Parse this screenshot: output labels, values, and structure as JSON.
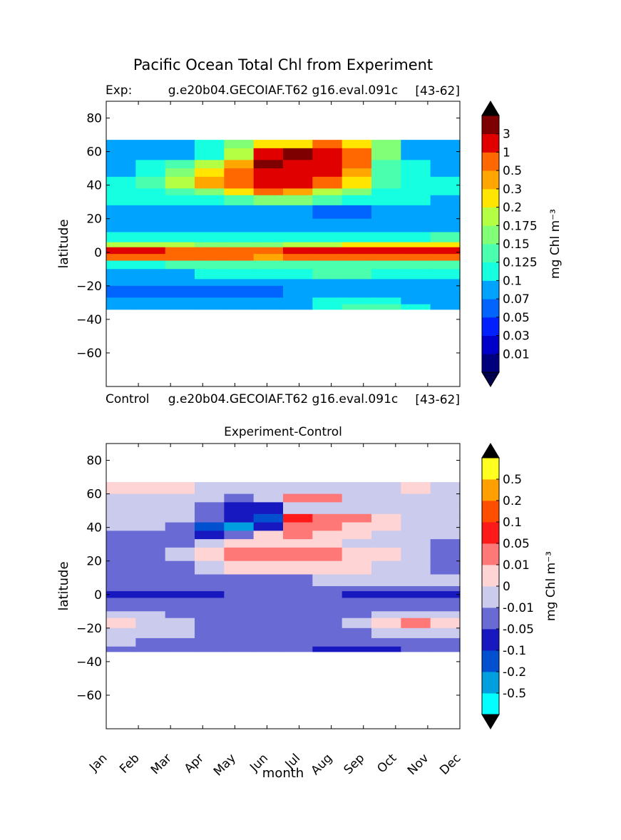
{
  "figure": {
    "title": "Pacific Ocean Total Chl from Experiment"
  },
  "chart_data": [
    {
      "type": "heatmap",
      "title_left": "Exp:",
      "title_center": "g.e20b04.GECOIAF.T62 g16.eval.091c",
      "title_right": "[43-62]",
      "bottom_left": "Control",
      "bottom_center": "g.e20b04.GECOIAF.T62 g16.eval.091c",
      "bottom_right": "[43-62]",
      "ylabel": "latitude",
      "ylim": [
        -80,
        90
      ],
      "yticks": [
        "80",
        "60",
        "40",
        "20",
        "0",
        "−20",
        "−40",
        "−60"
      ],
      "ytick_values": [
        80,
        60,
        40,
        20,
        0,
        -20,
        -40,
        -60
      ],
      "data_lat_range": [
        -34,
        67
      ],
      "colorbar": {
        "label": "mg Chl m⁻³",
        "tick_labels": [
          "0.01",
          "0.03",
          "0.05",
          "0.07",
          "0.1",
          "0.125",
          "0.15",
          "0.175",
          "0.2",
          "0.3",
          "0.5",
          "1",
          "3"
        ],
        "colors": [
          "#00007f",
          "#0000c8",
          "#0020ff",
          "#0064ff",
          "#00a4ff",
          "#16ffe1",
          "#4affad",
          "#80ff77",
          "#b4ff43",
          "#ffe500",
          "#ffa600",
          "#ff6800",
          "#e00000",
          "#7f0000"
        ],
        "extend_colors": [
          "#00004a",
          "#000000"
        ]
      },
      "bands": [
        {
          "lat": [
            62,
            67
          ],
          "values": [
            4,
            4,
            4,
            5,
            7,
            9,
            9,
            11,
            9,
            7,
            4,
            4
          ]
        },
        {
          "lat": [
            55,
            62
          ],
          "values": [
            4,
            4,
            4,
            5,
            8,
            12,
            13,
            12,
            11,
            7,
            4,
            4
          ]
        },
        {
          "lat": [
            50,
            55
          ],
          "values": [
            4,
            5,
            6,
            8,
            10,
            13,
            12,
            12,
            11,
            6,
            5,
            4
          ]
        },
        {
          "lat": [
            45,
            50
          ],
          "values": [
            4,
            5,
            7,
            9,
            11,
            12,
            12,
            12,
            10,
            6,
            5,
            4
          ]
        },
        {
          "lat": [
            38,
            45
          ],
          "values": [
            5,
            6,
            8,
            10,
            11,
            12,
            12,
            11,
            9,
            6,
            5,
            5
          ]
        },
        {
          "lat": [
            34,
            38
          ],
          "values": [
            5,
            5,
            6,
            7,
            9,
            11,
            10,
            8,
            7,
            5,
            5,
            5
          ]
        },
        {
          "lat": [
            28,
            34
          ],
          "values": [
            5,
            5,
            5,
            5,
            6,
            7,
            7,
            6,
            5,
            5,
            5,
            4
          ]
        },
        {
          "lat": [
            20,
            28
          ],
          "values": [
            4,
            4,
            4,
            4,
            4,
            4,
            4,
            3,
            3,
            4,
            4,
            4
          ]
        },
        {
          "lat": [
            12,
            20
          ],
          "values": [
            4,
            4,
            4,
            4,
            4,
            4,
            4,
            4,
            4,
            4,
            4,
            4
          ]
        },
        {
          "lat": [
            6,
            12
          ],
          "values": [
            5,
            5,
            5,
            5,
            5,
            5,
            5,
            5,
            5,
            5,
            5,
            6
          ]
        },
        {
          "lat": [
            3,
            6
          ],
          "values": [
            8,
            8,
            8,
            7,
            7,
            7,
            8,
            8,
            9,
            9,
            9,
            9
          ]
        },
        {
          "lat": [
            -1,
            3
          ],
          "values": [
            12,
            12,
            11,
            11,
            11,
            11,
            12,
            12,
            12,
            12,
            12,
            12
          ]
        },
        {
          "lat": [
            -5,
            -1
          ],
          "values": [
            11,
            11,
            11,
            11,
            11,
            10,
            11,
            11,
            11,
            11,
            11,
            11
          ]
        },
        {
          "lat": [
            -10,
            -5
          ],
          "values": [
            5,
            5,
            6,
            6,
            6,
            6,
            6,
            6,
            6,
            6,
            6,
            6
          ]
        },
        {
          "lat": [
            -16,
            -10
          ],
          "values": [
            4,
            4,
            4,
            5,
            5,
            5,
            5,
            6,
            6,
            5,
            5,
            5
          ]
        },
        {
          "lat": [
            -20,
            -16
          ],
          "values": [
            4,
            4,
            4,
            4,
            4,
            4,
            4,
            4,
            4,
            4,
            4,
            4
          ]
        },
        {
          "lat": [
            -27,
            -20
          ],
          "values": [
            3,
            3,
            3,
            3,
            3,
            3,
            4,
            4,
            4,
            4,
            4,
            4
          ]
        },
        {
          "lat": [
            -31,
            -27
          ],
          "values": [
            4,
            4,
            4,
            4,
            4,
            4,
            4,
            5,
            5,
            5,
            4,
            4
          ]
        },
        {
          "lat": [
            -34,
            -31
          ],
          "values": [
            4,
            4,
            4,
            4,
            4,
            4,
            4,
            5,
            6,
            6,
            5,
            4
          ]
        }
      ]
    },
    {
      "type": "heatmap",
      "title": "Experiment-Control",
      "ylabel": "latitude",
      "xlabel": "month",
      "ylim": [
        -80,
        90
      ],
      "yticks": [
        "80",
        "60",
        "40",
        "20",
        "0",
        "−20",
        "−40",
        "−60"
      ],
      "ytick_values": [
        80,
        60,
        40,
        20,
        0,
        -20,
        -40,
        -60
      ],
      "categories": [
        "Jan",
        "Feb",
        "Mar",
        "Apr",
        "May",
        "Jun",
        "Jul",
        "Aug",
        "Sep",
        "Oct",
        "Nov",
        "Dec"
      ],
      "data_lat_range": [
        -34,
        67
      ],
      "colorbar": {
        "label": "mg Chl m⁻³",
        "tick_labels": [
          "-0.5",
          "-0.2",
          "-0.1",
          "-0.05",
          "-0.01",
          "0",
          "0.01",
          "0.05",
          "0.1",
          "0.2",
          "0.5"
        ],
        "colors": [
          "#00ffff",
          "#00a0e0",
          "#0050d0",
          "#1818c0",
          "#6a6ad5",
          "#cbcbee",
          "#ffd4d4",
          "#ff7878",
          "#ff1a1a",
          "#ff4e00",
          "#ffa000",
          "#ffff20"
        ],
        "extend_colors": [
          "#000000",
          "#000000"
        ]
      },
      "bands": [
        {
          "lat": [
            60,
            67
          ],
          "values": [
            6,
            6,
            6,
            5,
            5,
            5,
            5,
            5,
            5,
            5,
            6,
            5
          ]
        },
        {
          "lat": [
            55,
            60
          ],
          "values": [
            5,
            5,
            5,
            5,
            4,
            5,
            7,
            7,
            5,
            5,
            5,
            5
          ]
        },
        {
          "lat": [
            48,
            55
          ],
          "values": [
            5,
            5,
            5,
            4,
            3,
            3,
            5,
            5,
            5,
            5,
            5,
            5
          ]
        },
        {
          "lat": [
            43,
            48
          ],
          "values": [
            5,
            5,
            5,
            4,
            3,
            2,
            8,
            7,
            7,
            6,
            5,
            5
          ]
        },
        {
          "lat": [
            38,
            43
          ],
          "values": [
            5,
            5,
            4,
            2,
            1,
            3,
            7,
            7,
            6,
            6,
            5,
            5
          ]
        },
        {
          "lat": [
            33,
            38
          ],
          "values": [
            4,
            4,
            4,
            3,
            4,
            6,
            7,
            6,
            6,
            5,
            5,
            5
          ]
        },
        {
          "lat": [
            28,
            33
          ],
          "values": [
            4,
            4,
            4,
            5,
            6,
            6,
            6,
            6,
            5,
            5,
            5,
            4
          ]
        },
        {
          "lat": [
            20,
            28
          ],
          "values": [
            4,
            4,
            5,
            6,
            7,
            7,
            7,
            7,
            6,
            6,
            5,
            4
          ]
        },
        {
          "lat": [
            12,
            20
          ],
          "values": [
            4,
            4,
            4,
            5,
            6,
            6,
            6,
            6,
            6,
            5,
            5,
            4
          ]
        },
        {
          "lat": [
            5,
            12
          ],
          "values": [
            4,
            4,
            4,
            4,
            4,
            4,
            4,
            5,
            5,
            5,
            5,
            5
          ]
        },
        {
          "lat": [
            2,
            5
          ],
          "values": [
            4,
            4,
            4,
            4,
            4,
            4,
            4,
            4,
            4,
            4,
            4,
            4
          ]
        },
        {
          "lat": [
            -2,
            2
          ],
          "values": [
            3,
            3,
            3,
            3,
            4,
            4,
            4,
            4,
            3,
            3,
            3,
            3
          ]
        },
        {
          "lat": [
            -10,
            -2
          ],
          "values": [
            4,
            4,
            4,
            4,
            4,
            4,
            4,
            4,
            4,
            4,
            4,
            4
          ]
        },
        {
          "lat": [
            -14,
            -10
          ],
          "values": [
            5,
            5,
            4,
            4,
            4,
            4,
            4,
            4,
            4,
            5,
            5,
            5
          ]
        },
        {
          "lat": [
            -20,
            -14
          ],
          "values": [
            6,
            5,
            5,
            4,
            4,
            4,
            4,
            4,
            5,
            6,
            7,
            6
          ]
        },
        {
          "lat": [
            -26,
            -20
          ],
          "values": [
            5,
            5,
            5,
            4,
            4,
            4,
            4,
            4,
            4,
            5,
            5,
            5
          ]
        },
        {
          "lat": [
            -31,
            -26
          ],
          "values": [
            5,
            4,
            4,
            4,
            4,
            4,
            4,
            4,
            4,
            4,
            4,
            4
          ]
        },
        {
          "lat": [
            -34,
            -31
          ],
          "values": [
            4,
            4,
            4,
            4,
            4,
            4,
            4,
            3,
            3,
            3,
            4,
            4
          ]
        }
      ]
    }
  ]
}
